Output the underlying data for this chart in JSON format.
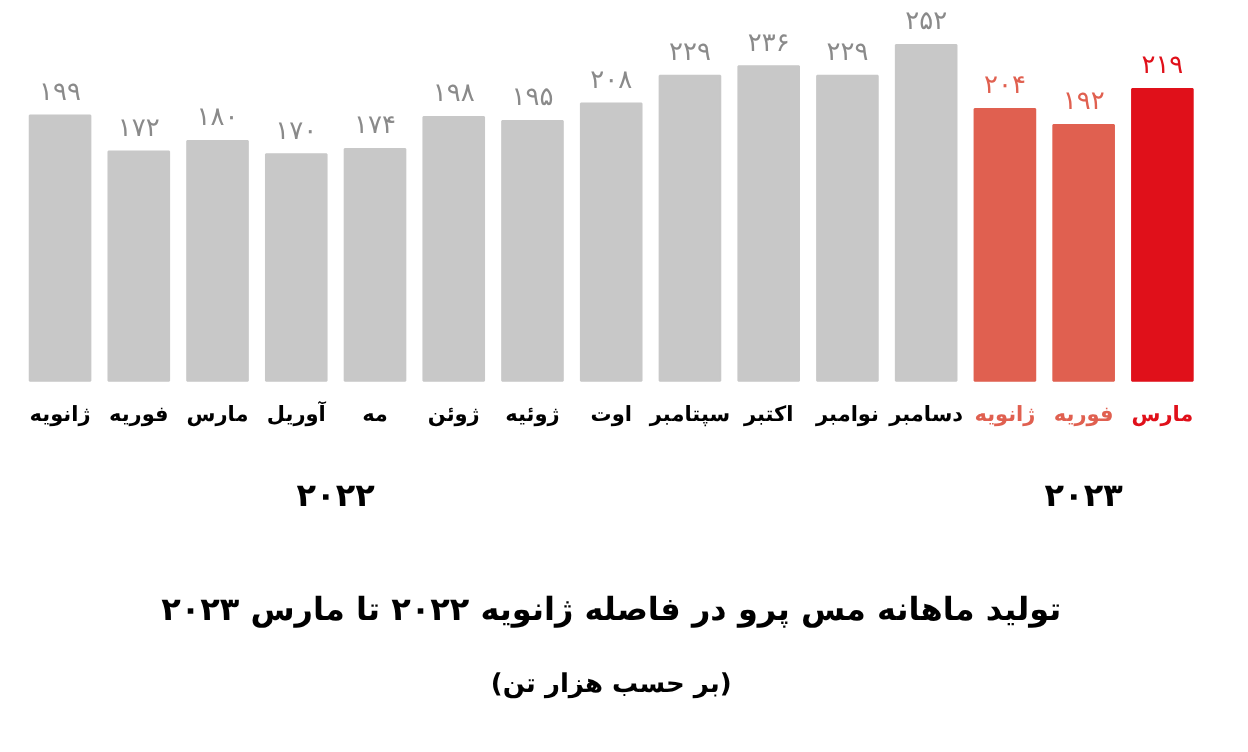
{
  "chart_data": {
    "type": "bar",
    "title": "تولید ماهانه مس پرو در فاصله ژانویه ۲۰۲۲ تا مارس ۲۰۲۳",
    "subtitle": "(بر حسب هزار تن)",
    "categories": [
      "ژانویه",
      "فوریه",
      "مارس",
      "آوریل",
      "مه",
      "ژوئن",
      "ژوئیه",
      "اوت",
      "سپتامبر",
      "اکتبر",
      "نوامبر",
      "دسامبر",
      "ژانویه",
      "فوریه",
      "مارس"
    ],
    "values": [
      199,
      172,
      180,
      170,
      174,
      198,
      195,
      208,
      229,
      236,
      229,
      252,
      204,
      192,
      219
    ],
    "value_labels": [
      "۱۹۹",
      "۱۷۲",
      "۱۸۰",
      "۱۷۰",
      "۱۷۴",
      "۱۹۸",
      "۱۹۵",
      "۲۰۸",
      "۲۲۹",
      "۲۳۶",
      "۲۲۹",
      "۲۵۲",
      "۲۰۴",
      "۱۹۲",
      "۲۱۹"
    ],
    "colors": [
      "#c8c8c8",
      "#c8c8c8",
      "#c8c8c8",
      "#c8c8c8",
      "#c8c8c8",
      "#c8c8c8",
      "#c8c8c8",
      "#c8c8c8",
      "#c8c8c8",
      "#c8c8c8",
      "#c8c8c8",
      "#c8c8c8",
      "#e06050",
      "#e06050",
      "#e0101a"
    ],
    "annotations": [
      "۲۰۲۲",
      "۲۰۲۳"
    ],
    "ylim": [
      0,
      285
    ],
    "tick_labels": "x",
    "grid": false
  }
}
